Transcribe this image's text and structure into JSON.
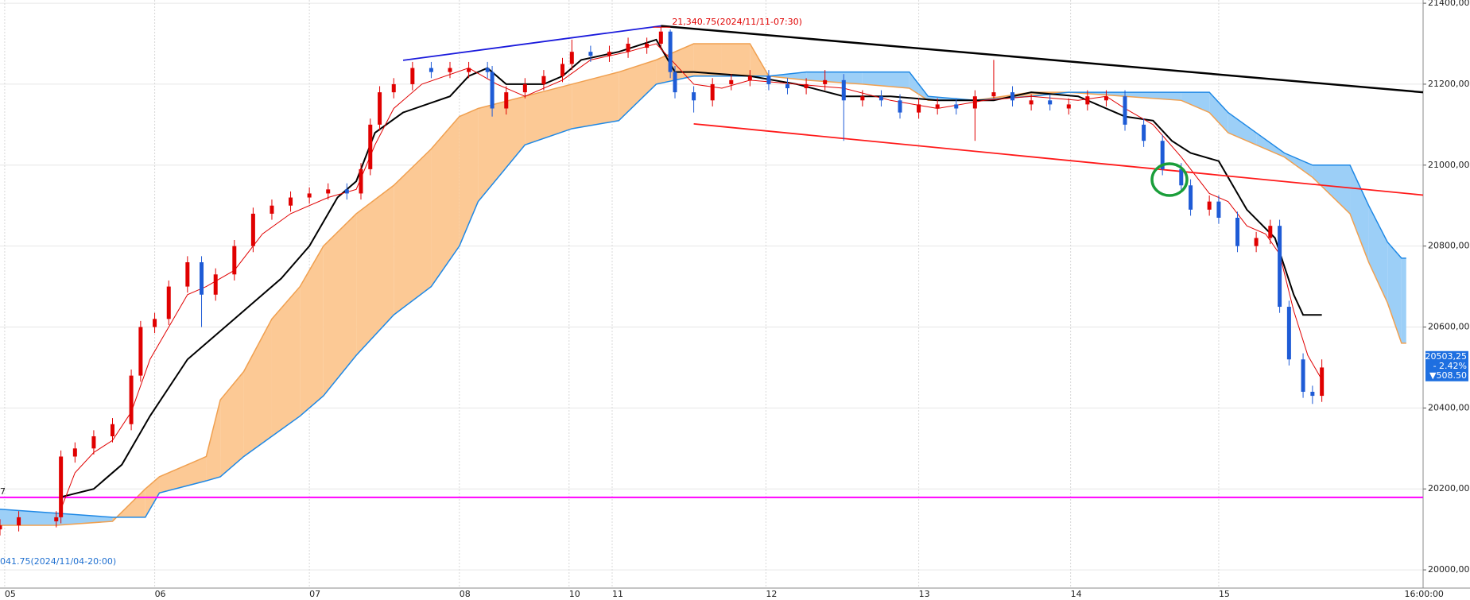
{
  "chart_data": {
    "type": "candlestick",
    "x": [
      0,
      2,
      6,
      6.5,
      8,
      10,
      12,
      14,
      15,
      16.5,
      18,
      20,
      21.5,
      23,
      25,
      27,
      29,
      31,
      33,
      35,
      37,
      38.5,
      39.5,
      40.5,
      42,
      44,
      46,
      48,
      50,
      52,
      52.5,
      54,
      56,
      58,
      60,
      61,
      63,
      65,
      67,
      69,
      70.5,
      71.5,
      72,
      74,
      76,
      78,
      80,
      82,
      84,
      86,
      88,
      90,
      92,
      94,
      96,
      98,
      100,
      102,
      104,
      106,
      108,
      110,
      112,
      114,
      116,
      118,
      120,
      122,
      124,
      126,
      127,
      129,
      130,
      132,
      134,
      135.5,
      136.5,
      137.5,
      139,
      140,
      141
    ],
    "open": [
      20100,
      20110,
      20120,
      20130,
      20280,
      20300,
      20330,
      20360,
      20480,
      20600,
      20620,
      20700,
      20760,
      20680,
      20730,
      20800,
      20880,
      20900,
      20920,
      20930,
      20940,
      20930,
      20990,
      21100,
      21180,
      21200,
      21240,
      21230,
      21230,
      21240,
      21230,
      21140,
      21180,
      21200,
      21220,
      21250,
      21280,
      21270,
      21280,
      21290,
      21300,
      21330,
      21230,
      21180,
      21160,
      21200,
      21210,
      21220,
      21200,
      21190,
      21200,
      21210,
      21160,
      21170,
      21160,
      21130,
      21140,
      21150,
      21140,
      21170,
      21180,
      21150,
      21160,
      21140,
      21150,
      21160,
      21170,
      21100,
      21060,
      20990,
      20950,
      20890,
      20910,
      20870,
      20800,
      20820,
      20850,
      20650,
      20520,
      20440,
      20430
    ],
    "high": [
      20125,
      20145,
      20145,
      20295,
      20315,
      20345,
      20375,
      20495,
      20615,
      20635,
      20715,
      20775,
      20775,
      20745,
      20815,
      20895,
      20915,
      20935,
      20945,
      20955,
      20955,
      21005,
      21115,
      21195,
      21215,
      21255,
      21255,
      21255,
      21255,
      21255,
      21245,
      21195,
      21215,
      21235,
      21265,
      21310,
      21295,
      21295,
      21315,
      21315,
      21340.75,
      21335,
      21245,
      21195,
      21215,
      21225,
      21235,
      21235,
      21215,
      21215,
      21235,
      21225,
      21185,
      21185,
      21175,
      21165,
      21165,
      21165,
      21185,
      21260,
      21195,
      21175,
      21175,
      21165,
      21185,
      21185,
      21185,
      21115,
      21075,
      21005,
      20965,
      20925,
      20925,
      20885,
      20835,
      20865,
      20865,
      20665,
      20535,
      20455,
      20520
    ],
    "low": [
      20085,
      20095,
      20105,
      20115,
      20265,
      20285,
      20315,
      20345,
      20465,
      20585,
      20605,
      20685,
      20600,
      20665,
      20715,
      20785,
      20865,
      20885,
      20905,
      20915,
      20915,
      20915,
      20975,
      21085,
      21165,
      21185,
      21215,
      21215,
      21215,
      21215,
      21120,
      21125,
      21165,
      21185,
      21205,
      21235,
      21255,
      21255,
      21265,
      21275,
      21285,
      21215,
      21165,
      21130,
      21145,
      21185,
      21195,
      21185,
      21175,
      21175,
      21185,
      21060,
      21145,
      21145,
      21115,
      21115,
      21125,
      21125,
      21060,
      21165,
      21145,
      21135,
      21135,
      21125,
      21135,
      21145,
      21085,
      21045,
      20975,
      20935,
      20875,
      20875,
      20855,
      20785,
      20785,
      20805,
      20635,
      20505,
      20425,
      20410,
      20415
    ],
    "close": [
      20110,
      20130,
      20130,
      20280,
      20300,
      20330,
      20360,
      20480,
      20600,
      20620,
      20700,
      20760,
      20680,
      20730,
      20800,
      20880,
      20900,
      20920,
      20930,
      20940,
      20930,
      20990,
      21100,
      21180,
      21200,
      21240,
      21230,
      21240,
      21240,
      21230,
      21140,
      21180,
      21200,
      21220,
      21250,
      21280,
      21270,
      21280,
      21300,
      21300,
      21330,
      21230,
      21180,
      21160,
      21200,
      21210,
      21220,
      21200,
      21190,
      21200,
      21210,
      21160,
      21170,
      21160,
      21130,
      21150,
      21150,
      21140,
      21170,
      21180,
      21160,
      21160,
      21150,
      21150,
      21170,
      21170,
      21100,
      21060,
      20990,
      20950,
      20890,
      20910,
      20870,
      20800,
      20820,
      20850,
      20650,
      20520,
      20440,
      20430,
      20500
    ],
    "up_color": "#e00000",
    "down_color": "#1e5bd6",
    "xlim": [
      0,
      151.8
    ],
    "ylim": [
      19955,
      21408
    ],
    "xticks": [
      {
        "value": 0.5,
        "label": "05"
      },
      {
        "value": 16.5,
        "label": "06"
      },
      {
        "value": 33,
        "label": "07"
      },
      {
        "value": 49,
        "label": "08"
      },
      {
        "value": 60.7,
        "label": "10"
      },
      {
        "value": 65.3,
        "label": "11"
      },
      {
        "value": 81.7,
        "label": "12"
      },
      {
        "value": 98,
        "label": "13"
      },
      {
        "value": 114.2,
        "label": "14"
      },
      {
        "value": 130,
        "label": "15"
      },
      {
        "value": 154,
        "label": "16:00:00"
      }
    ],
    "yticks": [
      {
        "value": 21400,
        "label": "21400,00"
      },
      {
        "value": 21200,
        "label": "21200,00"
      },
      {
        "value": 21000,
        "label": "21000,00"
      },
      {
        "value": 20800,
        "label": "20800,00"
      },
      {
        "value": 20600,
        "label": "20600,00"
      },
      {
        "value": 20400,
        "label": "20400,00"
      },
      {
        "value": 20200,
        "label": "20200,00"
      },
      {
        "value": 20000,
        "label": "20000,00"
      }
    ],
    "grid": true,
    "cloud": {
      "x": [
        0,
        6,
        12,
        15.5,
        17,
        22,
        23.5,
        26,
        29,
        32,
        34.5,
        38,
        42,
        46,
        49,
        51,
        56,
        61,
        66,
        70,
        74,
        77,
        80,
        82,
        86,
        92,
        97,
        99,
        104,
        110,
        114,
        120,
        126,
        129,
        131,
        134,
        137,
        140,
        144,
        146,
        148,
        149.5,
        150
      ],
      "span1": [
        20110,
        20110,
        20120,
        20200,
        20230,
        20280,
        20420,
        20490,
        20620,
        20700,
        20800,
        20880,
        20950,
        21040,
        21120,
        21140,
        21170,
        21200,
        21230,
        21260,
        21300,
        21300,
        21300,
        21220,
        21210,
        21200,
        21190,
        21160,
        21160,
        21180,
        21180,
        21170,
        21160,
        21130,
        21080,
        21050,
        21020,
        20970,
        20880,
        20760,
        20660,
        20560,
        20560
      ],
      "span2": [
        20150,
        20140,
        20130,
        20130,
        20190,
        20220,
        20230,
        20280,
        20330,
        20380,
        20430,
        20530,
        20630,
        20700,
        20800,
        20910,
        21050,
        21090,
        21110,
        21200,
        21220,
        21220,
        21220,
        21220,
        21230,
        21230,
        21230,
        21170,
        21160,
        21170,
        21180,
        21180,
        21180,
        21180,
        21130,
        21080,
        21030,
        21000,
        21000,
        20900,
        20810,
        20770,
        20770
      ],
      "span1_color": "#f0a050",
      "span2_color": "#1e88e5",
      "fill_span1_above": "#fcc995",
      "fill_span2_above": "#9ccff7"
    },
    "lines": [
      {
        "color": "#000000",
        "x": [
          6.5,
          10,
          13,
          16,
          20,
          25,
          30,
          33,
          36,
          38,
          40,
          43,
          48,
          50,
          52,
          54,
          58,
          60,
          62,
          66,
          70,
          72,
          74,
          80,
          85,
          90,
          95,
          100,
          106,
          110,
          115,
          120,
          123,
          125,
          127,
          130,
          133,
          136,
          138,
          139,
          141
        ],
        "values": [
          20180,
          20200,
          20260,
          20380,
          20520,
          20620,
          20720,
          20800,
          20920,
          20960,
          21080,
          21130,
          21170,
          21220,
          21240,
          21200,
          21200,
          21220,
          21260,
          21280,
          21310,
          21230,
          21230,
          21220,
          21200,
          21170,
          21170,
          21160,
          21160,
          21180,
          21170,
          21120,
          21110,
          21060,
          21030,
          21010,
          20890,
          20820,
          20680,
          20630,
          20630
        ]
      },
      {
        "color": "#e00000",
        "x": [
          6.5,
          8,
          10,
          12,
          14,
          16,
          18,
          20,
          22,
          25,
          28,
          31,
          35,
          38,
          40,
          42,
          45,
          50,
          53,
          56,
          60,
          63,
          67,
          70,
          72,
          74,
          77,
          80,
          85,
          90,
          95,
          100,
          105,
          110,
          115,
          118,
          120,
          123,
          126,
          129,
          131,
          133,
          135,
          136.5,
          138,
          139.5,
          141
        ],
        "values": [
          20150,
          20240,
          20290,
          20320,
          20390,
          20520,
          20600,
          20680,
          20700,
          20740,
          20830,
          20880,
          20920,
          20940,
          21050,
          21140,
          21200,
          21240,
          21200,
          21170,
          21210,
          21260,
          21280,
          21300,
          21250,
          21200,
          21190,
          21210,
          21200,
          21190,
          21160,
          21140,
          21160,
          21170,
          21160,
          21170,
          21140,
          21100,
          21020,
          20930,
          20910,
          20850,
          20830,
          20780,
          20640,
          20530,
          20470
        ]
      }
    ],
    "trendlines": [
      {
        "color": "#1a1adc",
        "x": [
          43,
          70.5
        ],
        "y": [
          21259,
          21344
        ]
      },
      {
        "color": "#000000",
        "x": [
          70.5,
          151.8
        ],
        "y": [
          21344,
          21180
        ]
      },
      {
        "color": "#ff1a1a",
        "x": [
          74,
          151.8
        ],
        "y": [
          21102,
          20926
        ]
      }
    ],
    "hline": {
      "value": 20179,
      "color": "#ff00ff"
    },
    "annotations": {
      "high": "21,340.75(2024/11/11-07:30)",
      "low": "041.75(2024/11/04-20:00)",
      "left_edge": "7"
    },
    "last_price": {
      "value": 20503.25,
      "label": "20503,25",
      "change": "- 2.42%",
      "diff": "▼508.50"
    }
  }
}
